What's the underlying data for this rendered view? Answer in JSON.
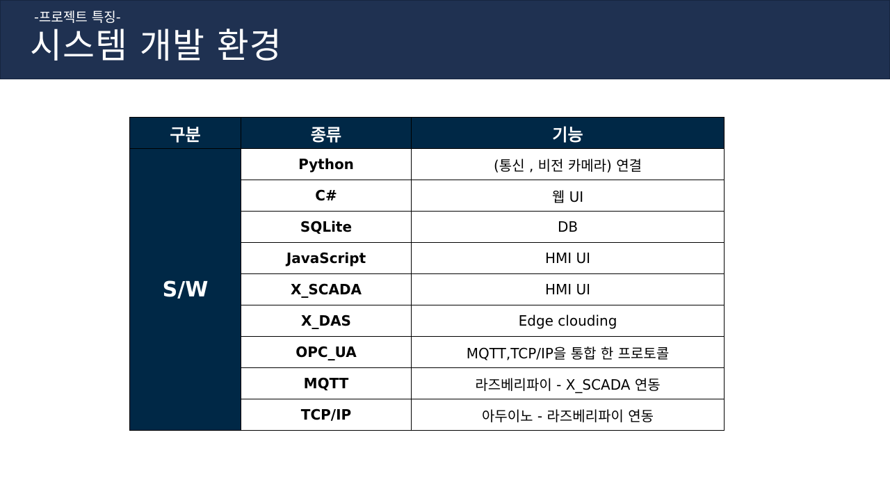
{
  "header": {
    "subtitle": "-프로젝트 특징-",
    "title": "시스템 개발 환경"
  },
  "table": {
    "columns": [
      "구분",
      "종류",
      "기능"
    ],
    "category": "S/W",
    "rows": [
      {
        "type": "Python",
        "function": "(통신 , 비전 카메라) 연결"
      },
      {
        "type": "C#",
        "function": "웹 UI"
      },
      {
        "type": "SQLite",
        "function": "DB"
      },
      {
        "type": "JavaScript",
        "function": "HMI UI"
      },
      {
        "type": "X_SCADA",
        "function": "HMI UI"
      },
      {
        "type": "X_DAS",
        "function": "Edge clouding"
      },
      {
        "type": "OPC_UA",
        "function": "MQTT,TCP/IP을 통합 한 프로토콜"
      },
      {
        "type": "MQTT",
        "function": "라즈베리파이 - X_SCADA 연동"
      },
      {
        "type": "TCP/IP",
        "function": "아두이노 - 라즈베리파이 연동"
      }
    ]
  },
  "colors": {
    "header_bg": "#1f3151",
    "table_header_bg": "#002846",
    "text_on_dark": "#ffffff"
  }
}
